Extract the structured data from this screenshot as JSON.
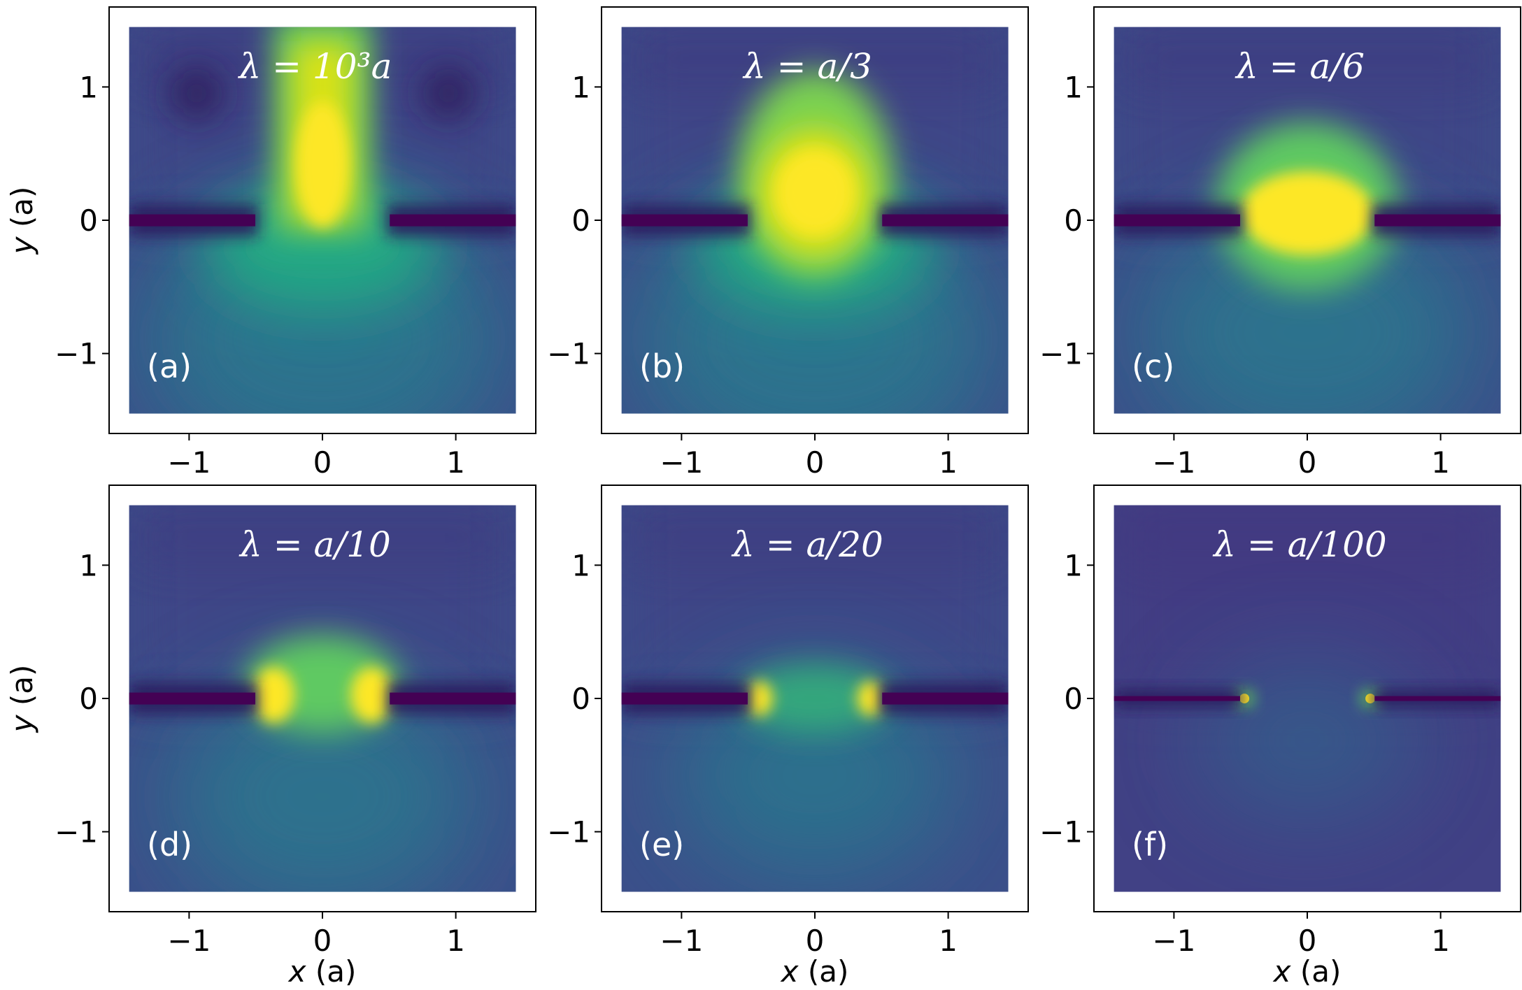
{
  "chart_data": [
    {
      "type": "heatmap",
      "panel": "(a)",
      "title": "λ = 10³a",
      "lambda_over_a": 1000,
      "xlim": [
        -1.6,
        1.6
      ],
      "ylim": [
        -1.6,
        1.6
      ],
      "x_ticks": [
        "−1",
        "0",
        "1"
      ],
      "y_ticks": [
        "1",
        "0",
        "−1"
      ],
      "xlabel": "",
      "ylabel": "y (a)",
      "colormap": "viridis",
      "slit": [
        -0.5,
        0.5
      ],
      "plate_y": 0
    },
    {
      "type": "heatmap",
      "panel": "(b)",
      "title": "λ = a/3",
      "lambda_over_a": 0.3333,
      "xlim": [
        -1.6,
        1.6
      ],
      "ylim": [
        -1.6,
        1.6
      ],
      "x_ticks": [
        "−1",
        "0",
        "1"
      ],
      "y_ticks": [
        "1",
        "0",
        "−1"
      ],
      "xlabel": "",
      "ylabel": "",
      "colormap": "viridis",
      "slit": [
        -0.5,
        0.5
      ],
      "plate_y": 0
    },
    {
      "type": "heatmap",
      "panel": "(c)",
      "title": "λ = a/6",
      "lambda_over_a": 0.1667,
      "xlim": [
        -1.6,
        1.6
      ],
      "ylim": [
        -1.6,
        1.6
      ],
      "x_ticks": [
        "−1",
        "0",
        "1"
      ],
      "y_ticks": [
        "1",
        "0",
        "−1"
      ],
      "xlabel": "",
      "ylabel": "",
      "colormap": "viridis",
      "slit": [
        -0.5,
        0.5
      ],
      "plate_y": 0
    },
    {
      "type": "heatmap",
      "panel": "(d)",
      "title": "λ = a/10",
      "lambda_over_a": 0.1,
      "xlim": [
        -1.6,
        1.6
      ],
      "ylim": [
        -1.6,
        1.6
      ],
      "x_ticks": [
        "−1",
        "0",
        "1"
      ],
      "y_ticks": [
        "1",
        "0",
        "−1"
      ],
      "xlabel": "x (a)",
      "ylabel": "y (a)",
      "colormap": "viridis",
      "slit": [
        -0.5,
        0.5
      ],
      "plate_y": 0
    },
    {
      "type": "heatmap",
      "panel": "(e)",
      "title": "λ = a/20",
      "lambda_over_a": 0.05,
      "xlim": [
        -1.6,
        1.6
      ],
      "ylim": [
        -1.6,
        1.6
      ],
      "x_ticks": [
        "−1",
        "0",
        "1"
      ],
      "y_ticks": [
        "1",
        "0",
        "−1"
      ],
      "xlabel": "x (a)",
      "ylabel": "",
      "colormap": "viridis",
      "slit": [
        -0.5,
        0.5
      ],
      "plate_y": 0
    },
    {
      "type": "heatmap",
      "panel": "(f)",
      "title": "λ = a/100",
      "lambda_over_a": 0.01,
      "xlim": [
        -1.6,
        1.6
      ],
      "ylim": [
        -1.6,
        1.6
      ],
      "x_ticks": [
        "−1",
        "0",
        "1"
      ],
      "y_ticks": [
        "1",
        "0",
        "−1"
      ],
      "xlabel": "x (a)",
      "ylabel": "",
      "colormap": "viridis",
      "slit": [
        -0.5,
        0.5
      ],
      "plate_y": 0
    }
  ]
}
